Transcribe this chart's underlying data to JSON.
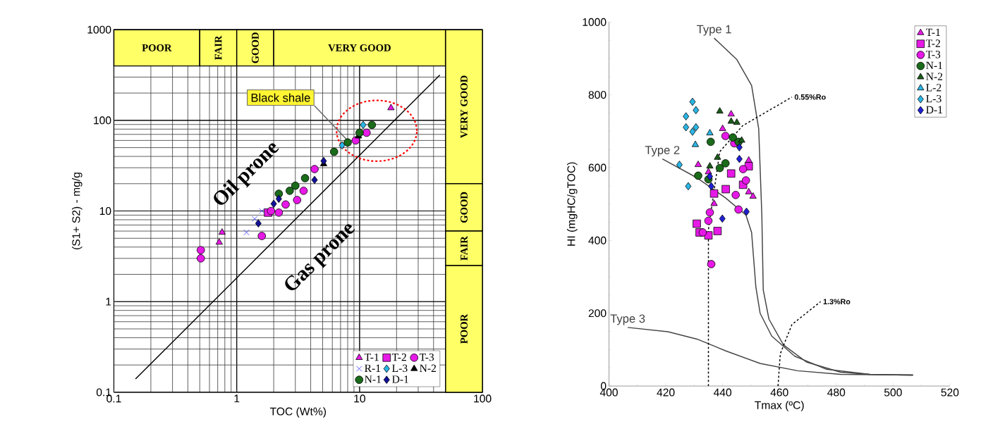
{
  "chart_data": [
    {
      "type": "scatter",
      "xlabel": "TOC (Wt%)",
      "ylabel": "(S1+ S2) - mg/g",
      "log": "xy",
      "grid": true,
      "legend": "bottom right",
      "xlim": [
        0.1,
        100
      ],
      "ylim": [
        0.1,
        1000
      ],
      "xticks": [
        0.1,
        1,
        10,
        100
      ],
      "yticks": [
        0.1,
        1,
        10,
        100,
        1000
      ],
      "bands": [
        {
          "axis": "x",
          "from": 0.1,
          "to": 0.5,
          "label": "POOR",
          "color": "#ffff66"
        },
        {
          "axis": "x",
          "from": 0.5,
          "to": 1,
          "label": "FAIR",
          "color": "#ffff66"
        },
        {
          "axis": "x",
          "from": 1,
          "to": 2,
          "label": "GOOD",
          "color": "#ffff66"
        },
        {
          "axis": "x",
          "from": 2,
          "to": 50,
          "label": "VERY GOOD",
          "color": "#ffff66"
        },
        {
          "axis": "y",
          "from": 20,
          "to": 1000,
          "label": "VERY GOOD",
          "color": "#ffff66"
        },
        {
          "axis": "y",
          "from": 6,
          "to": 20,
          "label": "GOOD",
          "color": "#ffff66"
        },
        {
          "axis": "y",
          "from": 2.5,
          "to": 6,
          "label": "FAIR",
          "color": "#ffff66"
        },
        {
          "axis": "y",
          "from": 0.1,
          "to": 2.5,
          "label": "POOR",
          "color": "#ffff66"
        }
      ],
      "annotations": [
        "Oil prone",
        "Gas prone",
        {
          "text": "Black shale",
          "x": 8,
          "y": 60
        }
      ],
      "series": [
        {
          "type": "line",
          "color": "#000000",
          "line_style": "solid",
          "x": [
            0.15,
            45
          ],
          "values": [
            0.14,
            316
          ]
        },
        {
          "name": "T-1",
          "color": "#e619e6",
          "marker": "triangle",
          "x": [
            0.72,
            0.76,
            18
          ],
          "values": [
            4.5,
            5.8,
            137
          ]
        },
        {
          "name": "T-2",
          "color": "#e619e6",
          "marker": "square",
          "x": [
            1.8
          ],
          "values": [
            9.6
          ]
        },
        {
          "name": "T-3",
          "color": "#e619e6",
          "marker": "circle",
          "x": [
            0.51,
            0.51,
            1.6,
            1.9,
            2.2,
            2.5,
            3.1,
            3.5,
            4.3,
            9.3,
            11.4
          ],
          "values": [
            3.7,
            3.0,
            5.3,
            10,
            9.6,
            11.8,
            13.2,
            16.7,
            29,
            60,
            73
          ]
        },
        {
          "name": "R-1",
          "color": "#3333ff",
          "marker": "cross",
          "x": [
            1.2,
            1.4,
            1.6
          ],
          "values": [
            5.8,
            8.2,
            10
          ]
        },
        {
          "name": "L-3",
          "color": "#29b6e6",
          "marker": "diamond",
          "x": [
            7.2,
            10.7
          ],
          "values": [
            53,
            89
          ]
        },
        {
          "name": "N-2",
          "color": "#000000",
          "marker": "triangle",
          "x": [
            5.1,
            9.8
          ],
          "values": [
            33,
            67
          ]
        },
        {
          "name": "N-1",
          "color": "#1a6b1a",
          "marker": "circle",
          "x": [
            2.2,
            2.7,
            3,
            3.6,
            6.2,
            8,
            10,
            12.6
          ],
          "values": [
            15.5,
            16.7,
            19,
            23,
            45,
            57,
            73,
            89
          ]
        },
        {
          "name": "D-1",
          "color": "#10109a",
          "marker": "diamond",
          "x": [
            1.5,
            2,
            2.2,
            4.3,
            5.1
          ],
          "values": [
            7.3,
            12,
            13.6,
            22,
            35.6
          ]
        }
      ]
    },
    {
      "type": "scatter",
      "xlabel": "Tmax (ºC)",
      "ylabel": "HI (mgHC/gTOC)",
      "legend": "top right",
      "xlim": [
        400,
        520
      ],
      "ylim": [
        0,
        1000
      ],
      "xticks": [
        400,
        420,
        440,
        460,
        480,
        500,
        520
      ],
      "yticks": [
        0,
        200,
        400,
        600,
        800,
        1000
      ],
      "series": [
        {
          "name": "Type 1",
          "type": "line",
          "color": "#444444",
          "line_style": "solid",
          "x": [
            437,
            445,
            450.2,
            452.7,
            453.8,
            454.3,
            456.3,
            461.4,
            469.5,
            481.6,
            491.8,
            507
          ],
          "values": [
            956,
            897,
            826,
            707,
            470,
            264,
            184,
            113,
            66,
            38,
            32,
            30
          ]
        },
        {
          "name": "Type 2",
          "type": "line",
          "color": "#444444",
          "line_style": "solid",
          "x": [
            418.8,
            431,
            441,
            448.2,
            450.2,
            451.7,
            453.2,
            457.3,
            465.4,
            476.6,
            491.8,
            507
          ],
          "values": [
            624,
            572,
            517,
            470,
            422,
            272,
            200,
            137,
            82,
            46,
            32,
            30
          ]
        },
        {
          "name": "Type 3",
          "type": "line",
          "color": "#444444",
          "line_style": "solid",
          "x": [
            406.6,
            420.8,
            431,
            441,
            453.2,
            466.4,
            481.6,
            507
          ],
          "values": [
            161,
            149,
            129,
            97,
            62,
            42,
            32,
            30
          ]
        },
        {
          "name": "0.55%Ro",
          "type": "line",
          "color": "#000000",
          "line_style": "dashed",
          "x": [
            435,
            435,
            439,
            447,
            464.4
          ],
          "values": [
            0,
            430,
            644,
            715,
            794
          ]
        },
        {
          "name": "1.3%Ro",
          "type": "line",
          "color": "#000000",
          "line_style": "dashed",
          "x": [
            459.5,
            460.3,
            464.4,
            474.5
          ],
          "values": [
            0,
            89,
            169,
            232
          ]
        },
        {
          "name": "T-1",
          "color": "#e619e6",
          "marker": "triangle",
          "x": [
            443,
            440,
            431.4,
            435,
            437,
            449.2,
            450.7,
            449.2
          ],
          "values": [
            747,
            707,
            608,
            588,
            501,
            620,
            521,
            533
          ]
        },
        {
          "name": "T-2",
          "color": "#e619e6",
          "marker": "square",
          "x": [
            430.9,
            431.9,
            435,
            438.2,
            437,
            441.1,
            449.2,
            447.2,
            443
          ],
          "values": [
            446,
            422,
            414,
            426,
            529,
            541,
            604,
            553,
            584
          ]
        },
        {
          "name": "T-3",
          "color": "#e619e6",
          "marker": "circle",
          "x": [
            436,
            435.5,
            435,
            433,
            441,
            445.6,
            448.2,
            447.2,
            444.1,
            444.6
          ],
          "values": [
            335,
            477,
            454,
            422,
            687,
            485,
            565,
            596,
            667,
            525
          ]
        },
        {
          "name": "N-1",
          "color": "#1a6b1a",
          "marker": "circle",
          "x": [
            435.8,
            431.4,
            439,
            441,
            443.6,
            445.6,
            435
          ],
          "values": [
            671,
            578,
            599,
            612,
            683,
            671,
            568
          ]
        },
        {
          "name": "N-2",
          "color": "#1a5c1a",
          "marker": "triangle",
          "x": [
            439,
            443,
            445,
            435.5,
            438.2,
            446.7
          ],
          "values": [
            755,
            727,
            724,
            604,
            628,
            675
          ]
        },
        {
          "name": "L-2",
          "color": "#29b6e6",
          "marker": "triangle",
          "x": [
            435.5,
            430.4
          ],
          "values": [
            695,
            663
          ]
        },
        {
          "name": "L-3",
          "color": "#29b6e6",
          "marker": "diamond",
          "x": [
            429.4,
            430.6,
            427.1,
            427.1,
            430.6,
            429.4,
            424.8,
            427.9
          ],
          "values": [
            781,
            758,
            741,
            711,
            711,
            699,
            608,
            549
          ]
        },
        {
          "name": "D-1",
          "color": "#1f1fd6",
          "marker": "diamond",
          "x": [
            435.5,
            436,
            439.9,
            448.4,
            445.9,
            445.9
          ],
          "values": [
            576,
            549,
            460,
            479,
            656,
            624
          ]
        }
      ]
    }
  ]
}
